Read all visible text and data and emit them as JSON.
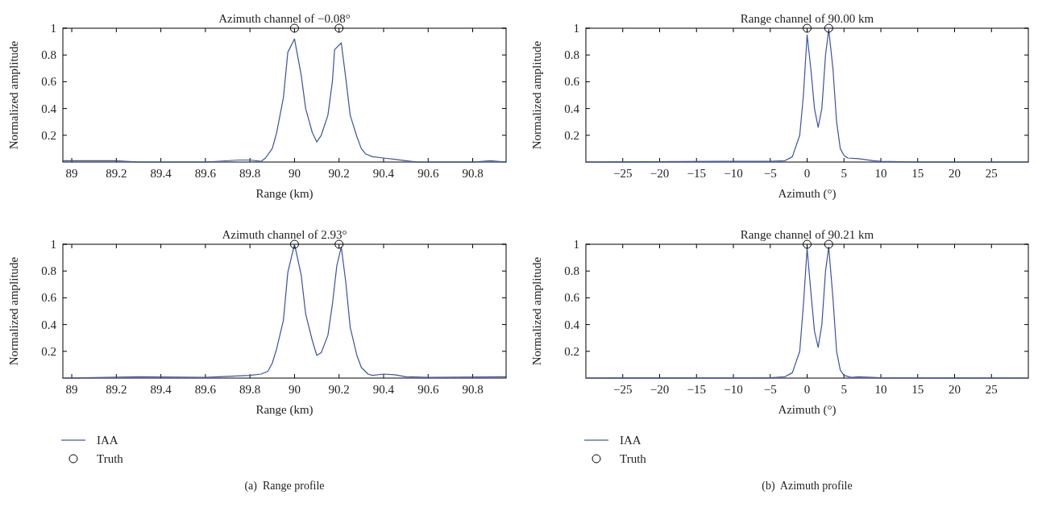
{
  "chart_data": [
    {
      "type": "line",
      "title": "Azimuth channel of −0.08°",
      "xlabel": "Range (km)",
      "ylabel": "Normalized amplitude",
      "xlim": [
        88.96,
        90.95
      ],
      "xticks": [
        89,
        89.2,
        89.4,
        89.6,
        89.8,
        90,
        90.2,
        90.4,
        90.6,
        90.8
      ],
      "ylim": [
        0,
        1
      ],
      "yticks": [
        0.2,
        0.4,
        0.6,
        0.8,
        1
      ],
      "grid": false,
      "legend": false,
      "series": [
        {
          "color": "#3a53a4",
          "x": [
            88.96,
            89.2,
            89.3,
            89.6,
            89.75,
            89.8,
            89.85,
            89.87,
            89.9,
            89.92,
            89.95,
            89.97,
            90.0,
            90.03,
            90.05,
            90.08,
            90.1,
            90.12,
            90.15,
            90.17,
            90.18,
            90.21,
            90.23,
            90.25,
            90.28,
            90.3,
            90.32,
            90.35,
            90.4,
            90.45,
            90.5,
            90.55,
            90.8,
            90.88,
            90.95
          ],
          "values": [
            0.01,
            0.01,
            0.0,
            0.0,
            0.015,
            0.015,
            0.005,
            0.03,
            0.1,
            0.22,
            0.48,
            0.82,
            0.92,
            0.65,
            0.4,
            0.22,
            0.15,
            0.2,
            0.35,
            0.6,
            0.84,
            0.89,
            0.63,
            0.35,
            0.19,
            0.1,
            0.06,
            0.04,
            0.03,
            0.02,
            0.01,
            0.0,
            0.0,
            0.01,
            0.0
          ]
        },
        {
          "type": "scatter",
          "marker": "circle",
          "color": "#000000",
          "x": [
            90.0,
            90.2
          ],
          "values": [
            1,
            1
          ]
        }
      ]
    },
    {
      "type": "line",
      "title": "Range channel of 90.00 km",
      "xlabel": "Azimuth (°)",
      "ylabel": "Normalized amplitude",
      "xlim": [
        -30,
        30
      ],
      "xticks": [
        {
          "value": -25,
          "label": "−25"
        },
        {
          "value": -20,
          "label": "−20"
        },
        {
          "value": -15,
          "label": "−15"
        },
        {
          "value": -10,
          "label": "−10"
        },
        {
          "value": -5,
          "label": "−5"
        },
        0,
        5,
        10,
        15,
        20,
        25
      ],
      "ylim": [
        0,
        1
      ],
      "yticks": [
        0.2,
        0.4,
        0.6,
        0.8,
        1
      ],
      "grid": false,
      "legend": false,
      "series": [
        {
          "color": "#3a53a4",
          "x": [
            -30,
            -12,
            -5,
            -3,
            -2,
            -1,
            -0.5,
            0,
            0.5,
            1,
            1.5,
            2,
            2.5,
            2.93,
            3.5,
            4,
            4.5,
            5,
            5.5,
            7,
            9,
            10,
            15,
            30
          ],
          "values": [
            0,
            0.005,
            0.005,
            0.01,
            0.04,
            0.2,
            0.5,
            0.95,
            0.7,
            0.4,
            0.26,
            0.4,
            0.8,
            0.99,
            0.7,
            0.3,
            0.1,
            0.05,
            0.03,
            0.025,
            0.01,
            0.005,
            0,
            0
          ]
        },
        {
          "type": "scatter",
          "marker": "circle",
          "color": "#000000",
          "x": [
            0,
            2.93
          ],
          "values": [
            1,
            1
          ]
        }
      ]
    },
    {
      "type": "line",
      "title": "Azimuth channel of 2.93°",
      "xlabel": "Range (km)",
      "ylabel": "Normalized amplitude",
      "xlim": [
        88.96,
        90.95
      ],
      "xticks": [
        89,
        89.2,
        89.4,
        89.6,
        89.8,
        90,
        90.2,
        90.4,
        90.6,
        90.8
      ],
      "ylim": [
        0,
        1
      ],
      "yticks": [
        0.2,
        0.4,
        0.6,
        0.8,
        1
      ],
      "grid": false,
      "legend": "bottom",
      "annotations": [
        "(a)  Range profile"
      ],
      "series": [
        {
          "name": "IAA",
          "color": "#3a53a4",
          "x": [
            88.96,
            89.3,
            89.6,
            89.8,
            89.85,
            89.88,
            89.9,
            89.92,
            89.95,
            89.97,
            90.0,
            90.03,
            90.05,
            90.08,
            90.1,
            90.12,
            90.15,
            90.17,
            90.19,
            90.21,
            90.23,
            90.25,
            90.28,
            90.3,
            90.33,
            90.35,
            90.4,
            90.45,
            90.5,
            90.6,
            90.95
          ],
          "values": [
            0.0,
            0.01,
            0.005,
            0.02,
            0.03,
            0.05,
            0.11,
            0.22,
            0.43,
            0.79,
            1.0,
            0.77,
            0.48,
            0.28,
            0.17,
            0.19,
            0.32,
            0.55,
            0.84,
            0.98,
            0.72,
            0.38,
            0.17,
            0.08,
            0.03,
            0.02,
            0.03,
            0.025,
            0.01,
            0.005,
            0.01
          ]
        },
        {
          "name": "Truth",
          "type": "scatter",
          "marker": "circle",
          "color": "#000000",
          "x": [
            90.0,
            90.2
          ],
          "values": [
            1,
            1
          ]
        }
      ]
    },
    {
      "type": "line",
      "title": "Range channel of 90.21 km",
      "xlabel": "Azimuth (°)",
      "ylabel": "Normalized amplitude",
      "xlim": [
        -30,
        30
      ],
      "xticks": [
        {
          "value": -25,
          "label": "−25"
        },
        {
          "value": -20,
          "label": "−20"
        },
        {
          "value": -15,
          "label": "−15"
        },
        {
          "value": -10,
          "label": "−10"
        },
        {
          "value": -5,
          "label": "−5"
        },
        0,
        5,
        10,
        15,
        20,
        25
      ],
      "ylim": [
        0,
        1
      ],
      "yticks": [
        0.2,
        0.4,
        0.6,
        0.8,
        1
      ],
      "grid": false,
      "legend": "bottom",
      "annotations": [
        "(b)  Azimuth profile"
      ],
      "series": [
        {
          "name": "IAA",
          "color": "#3a53a4",
          "x": [
            -30,
            -5,
            -3,
            -2,
            -1,
            -0.5,
            0,
            0.5,
            1,
            1.5,
            2,
            2.5,
            2.93,
            3.5,
            4,
            4.5,
            5,
            6,
            7,
            10,
            30
          ],
          "values": [
            0,
            0.002,
            0.01,
            0.04,
            0.2,
            0.55,
            0.97,
            0.65,
            0.35,
            0.23,
            0.4,
            0.8,
            0.98,
            0.6,
            0.2,
            0.06,
            0.02,
            0.005,
            0.01,
            0.002,
            0
          ]
        },
        {
          "name": "Truth",
          "type": "scatter",
          "marker": "circle",
          "color": "#000000",
          "x": [
            0,
            2.93
          ],
          "values": [
            1,
            1
          ]
        }
      ]
    }
  ]
}
